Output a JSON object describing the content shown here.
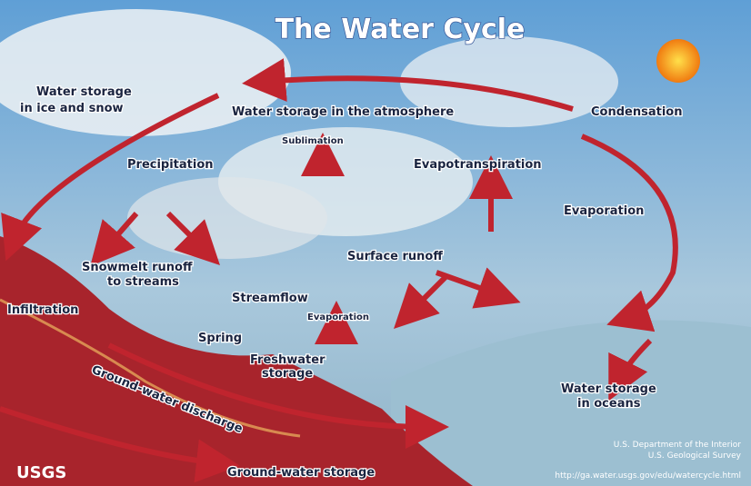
{
  "title": "The Water Cycle",
  "labels": {
    "ice_snow": [
      "Water storage",
      "in ice and snow"
    ],
    "atmosphere": "Water storage in the atmosphere",
    "condensation": "Condensation",
    "sublimation": "Sublimation",
    "precipitation": "Precipitation",
    "evapotranspiration": "Evapotranspiration",
    "evaporation": "Evaporation",
    "surface_runoff": "Surface runoff",
    "snowmelt": [
      "Snowmelt runoff",
      "to streams"
    ],
    "streamflow": "Streamflow",
    "infiltration": "Infiltration",
    "evaporation_small": "Evaporation",
    "spring": "Spring",
    "freshwater": [
      "Freshwater",
      "storage"
    ],
    "gw_discharge": "Ground-water discharge",
    "oceans": [
      "Water storage",
      "in oceans"
    ],
    "gw_storage": "Ground-water storage"
  },
  "footer": {
    "logo": "USGS",
    "credit": [
      "U.S. Department of the Interior",
      "U.S. Geological Survey"
    ],
    "url": "http://ga.water.usgs.gov/edu/watercycle.html"
  }
}
